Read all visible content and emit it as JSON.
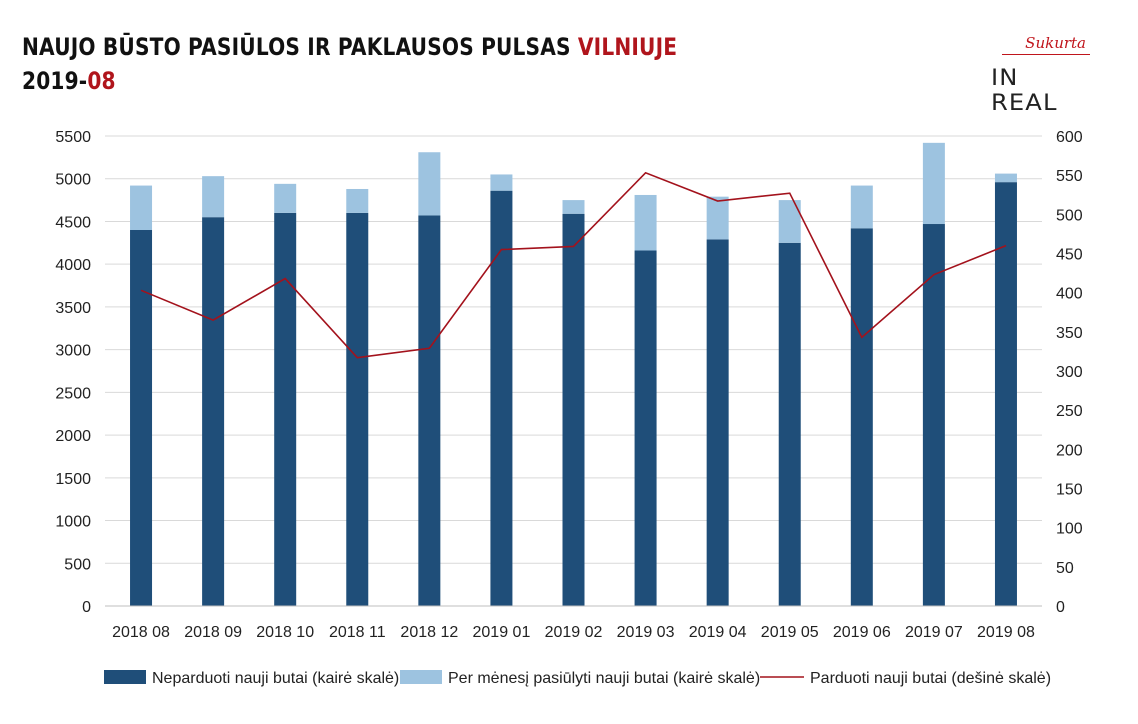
{
  "title": {
    "line1_main": "NAUJO BŪSTO PASIŪLOS IR PAKLAUSOS PULSAS ",
    "line1_accent": "VILNIUJE",
    "line2_main": "2019-",
    "line2_accent": "08"
  },
  "logo": {
    "top_text": "Sukurta",
    "bottom_text": "IN REAL"
  },
  "colors": {
    "dark_bar": "#1f4e79",
    "light_bar": "#9dc3e0",
    "line": "#a3121c",
    "accent": "#b0151c"
  },
  "chart_data": {
    "type": "bar",
    "categories": [
      "2018 08",
      "2018 09",
      "2018 10",
      "2018 11",
      "2018 12",
      "2019 01",
      "2019 02",
      "2019 03",
      "2019 04",
      "2019 05",
      "2019 06",
      "2019 07",
      "2019 08"
    ],
    "series": [
      {
        "name": "Neparduoti nauji butai (kairė skalė)",
        "type": "bar",
        "axis": "left",
        "values": [
          4400,
          4550,
          4600,
          4600,
          4570,
          4860,
          4590,
          4160,
          4290,
          4250,
          4420,
          4470,
          4960
        ]
      },
      {
        "name": "Per mėnesį pasiūlyti nauji butai (kairė skalė)",
        "type": "bar-stacked",
        "axis": "left",
        "values": [
          520,
          480,
          340,
          280,
          740,
          190,
          160,
          650,
          500,
          500,
          500,
          950,
          100
        ]
      },
      {
        "name": "Parduoti nauji butai (dešinė skalė)",
        "type": "line",
        "axis": "right",
        "values": [
          403,
          365,
          418,
          317,
          329,
          455,
          459,
          553,
          517,
          527,
          343,
          423,
          460
        ]
      }
    ],
    "y_left": {
      "min": 0,
      "max": 5500,
      "ticks": [
        "0",
        "500",
        "1000",
        "1500",
        "2000",
        "2500",
        "3000",
        "3500",
        "4000",
        "4500",
        "5000",
        "5500"
      ]
    },
    "y_right": {
      "min": 0,
      "max": 600,
      "ticks": [
        "0",
        "50",
        "100",
        "150",
        "200",
        "250",
        "300",
        "350",
        "400",
        "450",
        "500",
        "550",
        "600"
      ]
    },
    "grid": true,
    "legend_position": "bottom"
  }
}
